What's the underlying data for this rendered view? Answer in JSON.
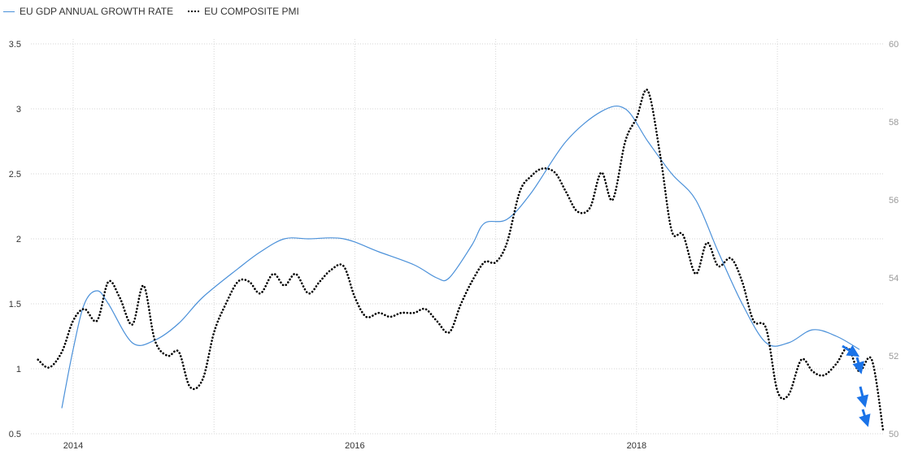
{
  "legend": {
    "series1_label": "EU GDP ANNUAL GROWTH RATE",
    "series2_label": "EU COMPOSITE PMI"
  },
  "chart_data": {
    "type": "line",
    "x_ticks": [
      "2014",
      "2016",
      "2018"
    ],
    "y_left_ticks": [
      "0.5",
      "1",
      "1.5",
      "2",
      "2.5",
      "3",
      "3.5"
    ],
    "y_right_ticks": [
      "50",
      "52",
      "54",
      "56",
      "58",
      "60"
    ],
    "y_left_range": [
      0.5,
      3.5
    ],
    "y_right_range": [
      50,
      60
    ],
    "x_range": [
      2013.7,
      2019.75
    ],
    "grid": true,
    "series": [
      {
        "name": "EU GDP ANNUAL GROWTH RATE",
        "axis": "left",
        "color": "#4a90d9",
        "style": "solid",
        "points": [
          [
            2013.92,
            0.7
          ],
          [
            2014.0,
            1.15
          ],
          [
            2014.08,
            1.5
          ],
          [
            2014.17,
            1.6
          ],
          [
            2014.25,
            1.5
          ],
          [
            2014.42,
            1.2
          ],
          [
            2014.58,
            1.22
          ],
          [
            2014.75,
            1.35
          ],
          [
            2014.92,
            1.55
          ],
          [
            2015.17,
            1.77
          ],
          [
            2015.33,
            1.9
          ],
          [
            2015.5,
            2.0
          ],
          [
            2015.67,
            2.0
          ],
          [
            2015.92,
            2.0
          ],
          [
            2016.17,
            1.9
          ],
          [
            2016.42,
            1.8
          ],
          [
            2016.58,
            1.7
          ],
          [
            2016.67,
            1.7
          ],
          [
            2016.83,
            1.95
          ],
          [
            2016.92,
            2.12
          ],
          [
            2017.08,
            2.15
          ],
          [
            2017.25,
            2.35
          ],
          [
            2017.5,
            2.75
          ],
          [
            2017.75,
            2.98
          ],
          [
            2017.92,
            3.0
          ],
          [
            2018.08,
            2.75
          ],
          [
            2018.25,
            2.5
          ],
          [
            2018.42,
            2.3
          ],
          [
            2018.58,
            1.9
          ],
          [
            2018.75,
            1.5
          ],
          [
            2018.92,
            1.2
          ],
          [
            2019.08,
            1.2
          ],
          [
            2019.25,
            1.3
          ],
          [
            2019.42,
            1.25
          ],
          [
            2019.58,
            1.15
          ]
        ]
      },
      {
        "name": "EU COMPOSITE PMI",
        "axis": "right",
        "color": "#000000",
        "style": "dotted",
        "points": [
          [
            2013.75,
            51.9
          ],
          [
            2013.83,
            51.7
          ],
          [
            2013.92,
            52.1
          ],
          [
            2014.0,
            52.9
          ],
          [
            2014.08,
            53.2
          ],
          [
            2014.17,
            52.9
          ],
          [
            2014.25,
            53.9
          ],
          [
            2014.33,
            53.5
          ],
          [
            2014.42,
            52.8
          ],
          [
            2014.5,
            53.8
          ],
          [
            2014.58,
            52.4
          ],
          [
            2014.67,
            52.0
          ],
          [
            2014.75,
            52.1
          ],
          [
            2014.83,
            51.2
          ],
          [
            2014.92,
            51.4
          ],
          [
            2015.0,
            52.6
          ],
          [
            2015.08,
            53.3
          ],
          [
            2015.17,
            53.9
          ],
          [
            2015.25,
            53.9
          ],
          [
            2015.33,
            53.6
          ],
          [
            2015.42,
            54.1
          ],
          [
            2015.5,
            53.8
          ],
          [
            2015.58,
            54.1
          ],
          [
            2015.67,
            53.6
          ],
          [
            2015.75,
            53.9
          ],
          [
            2015.83,
            54.2
          ],
          [
            2015.92,
            54.3
          ],
          [
            2016.0,
            53.5
          ],
          [
            2016.08,
            53.0
          ],
          [
            2016.17,
            53.1
          ],
          [
            2016.25,
            53.0
          ],
          [
            2016.33,
            53.1
          ],
          [
            2016.42,
            53.1
          ],
          [
            2016.5,
            53.2
          ],
          [
            2016.58,
            52.9
          ],
          [
            2016.67,
            52.6
          ],
          [
            2016.75,
            53.3
          ],
          [
            2016.83,
            53.9
          ],
          [
            2016.92,
            54.4
          ],
          [
            2017.0,
            54.4
          ],
          [
            2017.08,
            54.9
          ],
          [
            2017.17,
            56.2
          ],
          [
            2017.25,
            56.6
          ],
          [
            2017.33,
            56.8
          ],
          [
            2017.42,
            56.7
          ],
          [
            2017.5,
            56.2
          ],
          [
            2017.58,
            55.7
          ],
          [
            2017.67,
            55.8
          ],
          [
            2017.75,
            56.7
          ],
          [
            2017.83,
            56.0
          ],
          [
            2017.92,
            57.5
          ],
          [
            2018.0,
            58.1
          ],
          [
            2018.08,
            58.8
          ],
          [
            2018.17,
            57.1
          ],
          [
            2018.25,
            55.2
          ],
          [
            2018.33,
            55.1
          ],
          [
            2018.42,
            54.1
          ],
          [
            2018.5,
            54.9
          ],
          [
            2018.58,
            54.3
          ],
          [
            2018.67,
            54.5
          ],
          [
            2018.75,
            53.9
          ],
          [
            2018.83,
            52.9
          ],
          [
            2018.92,
            52.7
          ],
          [
            2019.0,
            51.1
          ],
          [
            2019.08,
            51.0
          ],
          [
            2019.17,
            51.9
          ],
          [
            2019.25,
            51.6
          ],
          [
            2019.33,
            51.5
          ],
          [
            2019.42,
            51.8
          ],
          [
            2019.5,
            52.2
          ],
          [
            2019.58,
            51.6
          ],
          [
            2019.67,
            51.9
          ],
          [
            2019.75,
            50.1
          ]
        ]
      }
    ],
    "annotations": [
      {
        "type": "arrow",
        "color": "#1a73e8"
      }
    ]
  }
}
